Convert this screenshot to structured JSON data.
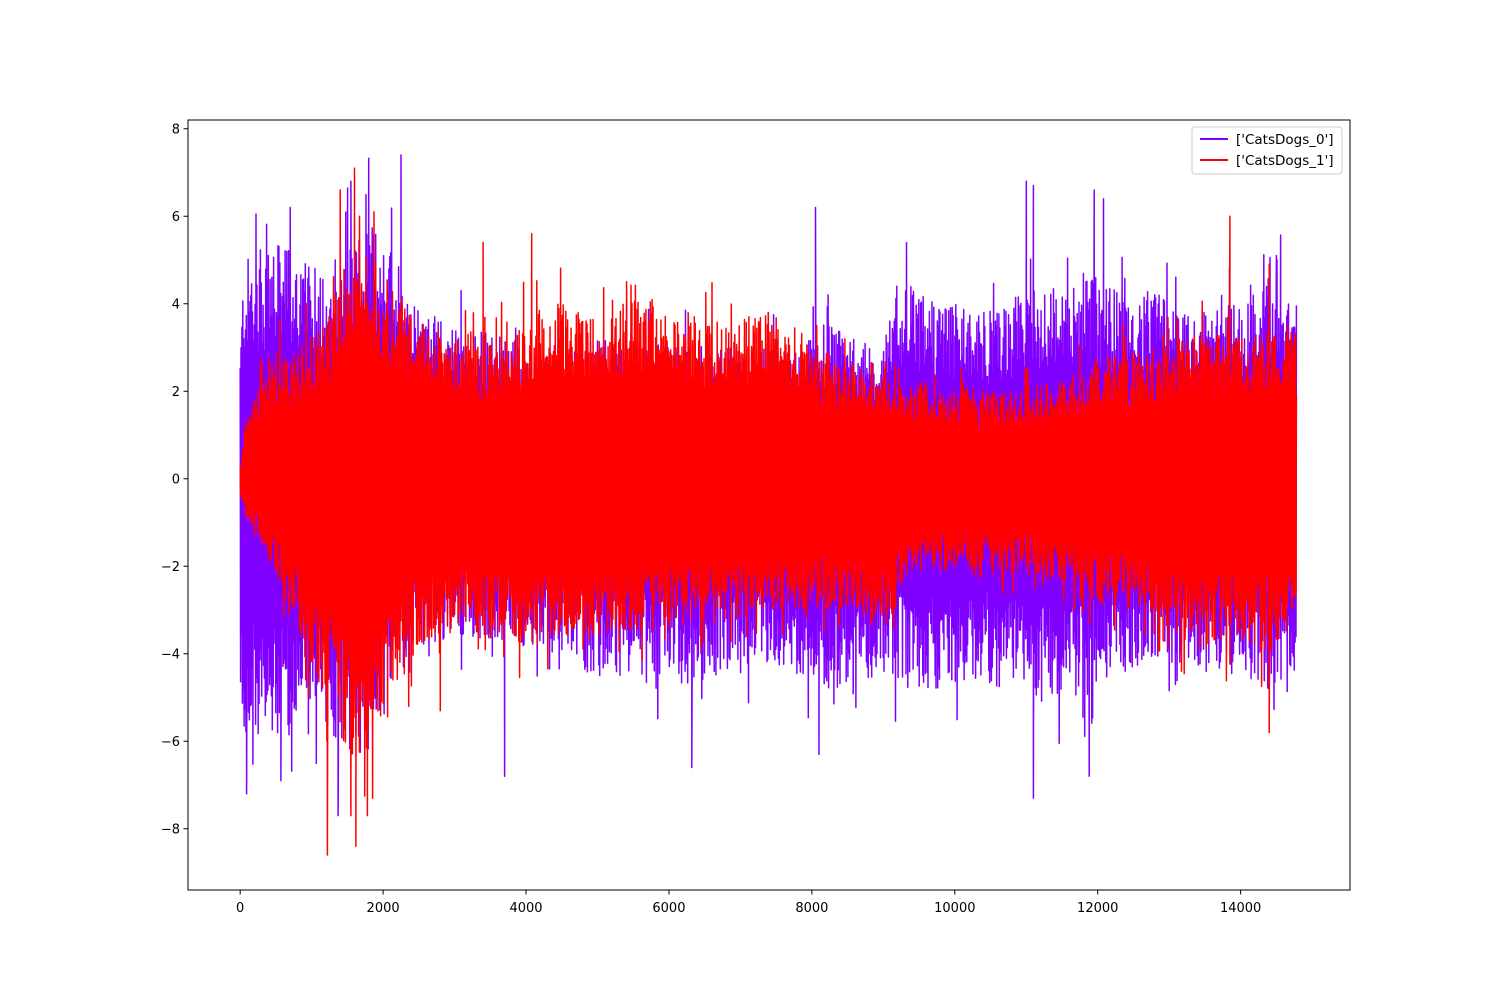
{
  "chart_data": {
    "type": "line",
    "title": "",
    "xlabel": "",
    "ylabel": "",
    "xlim": [
      -730,
      15530
    ],
    "ylim": [
      -9.4,
      8.2
    ],
    "x_ticks": [
      0,
      2000,
      4000,
      6000,
      8000,
      10000,
      12000,
      14000
    ],
    "x_tick_labels": [
      "0",
      "2000",
      "4000",
      "6000",
      "8000",
      "10000",
      "12000",
      "14000"
    ],
    "y_ticks": [
      -8,
      -6,
      -4,
      -2,
      0,
      2,
      4,
      6,
      8
    ],
    "y_tick_labels": [
      "−8",
      "−6",
      "−4",
      "−2",
      "0",
      "2",
      "4",
      "6",
      "8"
    ],
    "grid": false,
    "legend_position": "top-right",
    "x_range": [
      0,
      14780
    ],
    "series": [
      {
        "name": "['CatsDogs_0']",
        "color": "#7f00ff",
        "envelope": {
          "x": [
            0,
            50,
            200,
            400,
            600,
            800,
            1000,
            1200,
            1400,
            1600,
            1800,
            2000,
            2200,
            2400,
            2600,
            3000,
            3400,
            3800,
            4200,
            4600,
            5000,
            5400,
            5800,
            6200,
            6600,
            7000,
            7400,
            7800,
            8000,
            8200,
            8600,
            9000,
            9200,
            9600,
            10000,
            10400,
            10800,
            11000,
            11200,
            11600,
            11800,
            12000,
            12400,
            12800,
            13200,
            13600,
            14000,
            14400,
            14780
          ],
          "upper": [
            3.0,
            5.0,
            5.2,
            5.3,
            5.4,
            5.2,
            4.8,
            5.0,
            5.3,
            5.6,
            5.9,
            5.7,
            5.2,
            4.2,
            3.8,
            3.5,
            3.4,
            3.2,
            3.0,
            3.1,
            3.2,
            3.4,
            3.2,
            3.1,
            3.0,
            3.0,
            3.1,
            2.9,
            3.4,
            3.6,
            3.2,
            3.0,
            4.6,
            4.2,
            4.0,
            3.8,
            4.0,
            4.6,
            4.3,
            4.5,
            4.7,
            4.6,
            4.2,
            4.3,
            3.9,
            3.9,
            4.0,
            4.6,
            4.3
          ],
          "lower": [
            -5.5,
            -6.0,
            -6.0,
            -6.3,
            -6.0,
            -5.7,
            -5.4,
            -5.8,
            -6.1,
            -6.3,
            -6.2,
            -5.5,
            -4.8,
            -4.1,
            -3.8,
            -3.7,
            -3.7,
            -3.8,
            -3.9,
            -4.1,
            -4.6,
            -4.5,
            -4.8,
            -4.7,
            -4.6,
            -4.5,
            -4.2,
            -4.5,
            -4.6,
            -4.9,
            -4.6,
            -4.5,
            -4.7,
            -4.9,
            -4.8,
            -4.6,
            -4.9,
            -5.1,
            -5.2,
            -5.0,
            -5.0,
            -4.8,
            -4.4,
            -4.3,
            -4.3,
            -4.5,
            -4.6,
            -4.8,
            -4.5
          ],
          "peaks_high": [
            [
              700,
              6.2
            ],
            [
              1550,
              6.8
            ],
            [
              2250,
              7.4
            ],
            [
              8050,
              6.2
            ],
            [
              11000,
              6.8
            ],
            [
              11100,
              6.7
            ],
            [
              11950,
              6.6
            ],
            [
              12080,
              6.4
            ],
            [
              14500,
              5.1
            ]
          ],
          "peaks_low": [
            [
              90,
              -7.2
            ],
            [
              570,
              -6.9
            ],
            [
              1370,
              -7.7
            ],
            [
              3700,
              -6.8
            ],
            [
              6320,
              -6.6
            ],
            [
              8100,
              -6.3
            ],
            [
              11100,
              -7.3
            ],
            [
              11880,
              -6.8
            ]
          ]
        }
      },
      {
        "name": "['CatsDogs_1']",
        "color": "#ff0000",
        "envelope": {
          "x": [
            0,
            100,
            300,
            500,
            700,
            900,
            1200,
            1500,
            1800,
            2200,
            2600,
            3000,
            3400,
            3800,
            4200,
            4600,
            5000,
            5400,
            5800,
            6200,
            6600,
            7000,
            7400,
            7800,
            8200,
            8600,
            9000,
            9400,
            9800,
            10200,
            10600,
            11000,
            11400,
            11800,
            12200,
            12600,
            13000,
            13400,
            13800,
            14200,
            14600,
            14780
          ],
          "upper": [
            0.3,
            1.4,
            2.6,
            3.0,
            2.9,
            3.2,
            3.6,
            5.0,
            5.2,
            4.2,
            3.6,
            3.2,
            3.0,
            3.4,
            3.9,
            4.1,
            4.1,
            4.1,
            4.2,
            3.9,
            3.6,
            3.8,
            3.9,
            3.4,
            2.9,
            2.6,
            2.8,
            2.3,
            2.1,
            2.1,
            2.0,
            2.1,
            2.2,
            2.6,
            2.9,
            2.9,
            3.1,
            3.3,
            3.3,
            3.4,
            3.6,
            3.3
          ],
          "lower": [
            -0.3,
            -1.0,
            -1.6,
            -2.2,
            -3.2,
            -4.0,
            -5.2,
            -6.2,
            -6.8,
            -4.8,
            -3.8,
            -3.5,
            -3.6,
            -3.8,
            -3.9,
            -3.6,
            -3.7,
            -3.6,
            -3.5,
            -3.4,
            -3.3,
            -3.2,
            -3.2,
            -3.0,
            -3.0,
            -3.2,
            -3.5,
            -2.2,
            -2.1,
            -2.0,
            -2.2,
            -2.2,
            -2.3,
            -2.8,
            -3.0,
            -3.0,
            -3.6,
            -3.9,
            -3.9,
            -4.0,
            -4.1,
            -3.3
          ],
          "peaks_high": [
            [
              1400,
              6.6
            ],
            [
              1600,
              7.1
            ],
            [
              1670,
              6.0
            ],
            [
              3400,
              5.4
            ],
            [
              4080,
              5.6
            ],
            [
              13850,
              6.0
            ],
            [
              14400,
              4.9
            ]
          ],
          "peaks_low": [
            [
              1220,
              -8.6
            ],
            [
              1550,
              -7.7
            ],
            [
              1620,
              -8.4
            ],
            [
              1780,
              -7.7
            ],
            [
              2800,
              -5.3
            ],
            [
              14400,
              -5.8
            ]
          ]
        }
      }
    ]
  }
}
